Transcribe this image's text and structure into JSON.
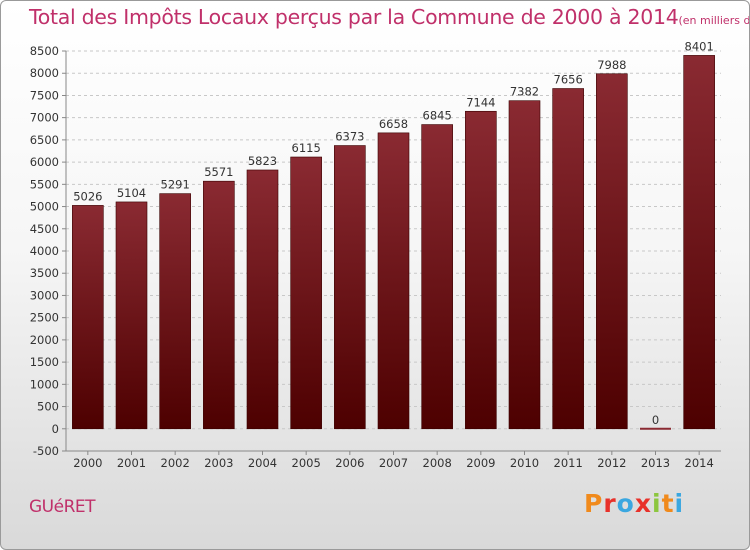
{
  "header": {
    "title": "Total des Impôts Locaux perçus par la Commune de 2000 à 2014",
    "unit": "(en milliers d'€)"
  },
  "footer": {
    "commune": "GUéRET",
    "logo_text": "Proxiti"
  },
  "colors": {
    "title": "#c0306a",
    "bar_light": "#8a2a32",
    "bar_dark": "#4d0000",
    "logo": [
      "#f08a1c",
      "#e8312a",
      "#3aa7e0",
      "#e8312a",
      "#8cc63f",
      "#f08a1c",
      "#3aa7e0"
    ]
  },
  "chart_data": {
    "type": "bar",
    "categories": [
      "2000",
      "2001",
      "2002",
      "2003",
      "2004",
      "2005",
      "2006",
      "2007",
      "2008",
      "2009",
      "2010",
      "2011",
      "2012",
      "2013",
      "2014"
    ],
    "values": [
      5026,
      5104,
      5291,
      5571,
      5823,
      6115,
      6373,
      6658,
      6845,
      7144,
      7382,
      7656,
      7988,
      0,
      8401
    ],
    "data_labels": [
      "5026",
      "5104",
      "5291",
      "5571",
      "5823",
      "6115",
      "6373",
      "6658",
      "6845",
      "7144",
      "7382",
      "7656",
      "7988",
      "0",
      "8401"
    ],
    "title": "Total des Impôts Locaux perçus par la Commune de 2000 à 2014",
    "ylim": [
      -500,
      8500
    ],
    "yticks": [
      -500,
      0,
      500,
      1000,
      1500,
      2000,
      2500,
      3000,
      3500,
      4000,
      4500,
      5000,
      5500,
      6000,
      6500,
      7000,
      7500,
      8000,
      8500
    ],
    "grid": true
  }
}
